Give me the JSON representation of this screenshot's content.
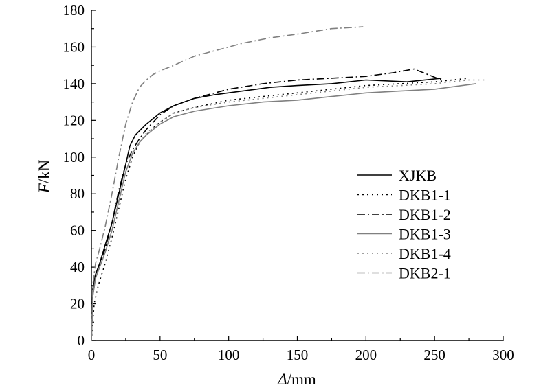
{
  "chart_data": {
    "type": "line",
    "xlabel_var": "Δ",
    "xlabel_unit": "/mm",
    "ylabel_var": "F",
    "ylabel_unit": "/kN",
    "xlim": [
      0,
      300
    ],
    "ylim": [
      0,
      180
    ],
    "x_ticks": [
      0,
      50,
      100,
      150,
      200,
      250,
      300
    ],
    "y_ticks": [
      0,
      20,
      40,
      60,
      80,
      100,
      120,
      140,
      160,
      180
    ],
    "grid": false,
    "legend_position": "right",
    "series": [
      {
        "name": "XJKB",
        "color": "#000000",
        "dash": "",
        "x": [
          0,
          1,
          3,
          6,
          10,
          15,
          20,
          25,
          28,
          32,
          36,
          40,
          45,
          50,
          60,
          75,
          90,
          110,
          130,
          150,
          175,
          200,
          230,
          255
        ],
        "y": [
          0,
          28,
          36,
          42,
          52,
          64,
          80,
          96,
          106,
          112,
          115,
          118,
          121,
          124,
          128,
          132,
          134,
          136,
          138,
          139,
          140,
          142,
          141,
          143
        ]
      },
      {
        "name": "DKB1-1",
        "color": "#000000",
        "dash": "2,5",
        "x": [
          0,
          2,
          5,
          10,
          15,
          20,
          25,
          30,
          35,
          40,
          45,
          50,
          60,
          75,
          100,
          125,
          150,
          175,
          200,
          225,
          250,
          275
        ],
        "y": [
          0,
          20,
          30,
          42,
          56,
          72,
          88,
          100,
          108,
          112,
          116,
          119,
          124,
          127,
          131,
          133,
          135,
          137,
          139,
          140,
          141,
          143
        ]
      },
      {
        "name": "DKB1-2",
        "color": "#000000",
        "dash": "11,4,2,4",
        "x": [
          0,
          1,
          3,
          6,
          10,
          15,
          20,
          25,
          30,
          35,
          40,
          45,
          50,
          60,
          75,
          100,
          125,
          150,
          175,
          200,
          220,
          235,
          245,
          255
        ],
        "y": [
          0,
          26,
          36,
          42,
          50,
          64,
          82,
          96,
          104,
          110,
          115,
          119,
          123,
          128,
          132,
          137,
          140,
          142,
          143,
          144,
          146,
          148,
          145,
          142
        ]
      },
      {
        "name": "DKB1-3",
        "color": "#808080",
        "dash": "",
        "x": [
          0,
          1,
          3,
          6,
          10,
          15,
          20,
          25,
          30,
          35,
          40,
          45,
          50,
          60,
          75,
          100,
          125,
          150,
          175,
          200,
          225,
          250,
          280
        ],
        "y": [
          0,
          24,
          34,
          40,
          48,
          60,
          76,
          92,
          102,
          108,
          112,
          115,
          118,
          122,
          125,
          128,
          130,
          131,
          133,
          135,
          136,
          137,
          140
        ]
      },
      {
        "name": "DKB1-4",
        "color": "#808080",
        "dash": "2,5",
        "x": [
          0,
          1,
          3,
          6,
          10,
          15,
          20,
          25,
          30,
          35,
          40,
          45,
          50,
          60,
          75,
          100,
          125,
          150,
          175,
          200,
          225,
          250,
          275,
          288
        ],
        "y": [
          0,
          24,
          34,
          40,
          48,
          60,
          76,
          92,
          102,
          108,
          113,
          116,
          119,
          124,
          127,
          130,
          132,
          134,
          136,
          138,
          139,
          140,
          142,
          142
        ]
      },
      {
        "name": "DKB2-1",
        "color": "#808080",
        "dash": "11,4,2,4",
        "x": [
          0,
          1,
          3,
          6,
          10,
          15,
          20,
          25,
          30,
          35,
          40,
          45,
          50,
          60,
          75,
          90,
          110,
          130,
          150,
          175,
          198
        ],
        "y": [
          0,
          30,
          42,
          50,
          62,
          80,
          100,
          118,
          130,
          138,
          142,
          145,
          147,
          150,
          155,
          158,
          162,
          165,
          167,
          170,
          171
        ]
      }
    ]
  }
}
